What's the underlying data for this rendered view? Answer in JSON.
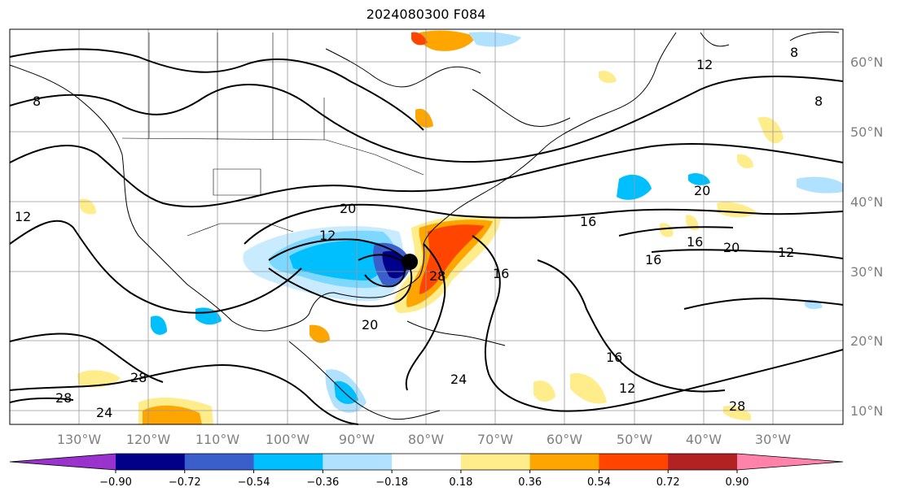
{
  "title": "2024080300 F084",
  "map": {
    "lat_labels": [
      "60°N",
      "50°N",
      "40°N",
      "30°N",
      "20°N",
      "10°N"
    ],
    "lon_labels": [
      "130°W",
      "120°W",
      "110°W",
      "100°W",
      "90°W",
      "80°W",
      "70°W",
      "60°W",
      "50°W",
      "40°W",
      "30°W"
    ],
    "contour_labels": [
      "8",
      "8",
      "8",
      "12",
      "12",
      "12",
      "12",
      "12",
      "16",
      "16",
      "16",
      "16",
      "16",
      "20",
      "20",
      "20",
      "20",
      "24",
      "24",
      "28",
      "28",
      "28",
      "28"
    ]
  },
  "colorbar": {
    "ticks": [
      "−0.90",
      "−0.72",
      "−0.54",
      "−0.36",
      "−0.18",
      "0.18",
      "0.36",
      "0.54",
      "0.72",
      "0.90"
    ],
    "colors": [
      "#9a32cd",
      "#00008b",
      "#3a5fcd",
      "#00bfff",
      "#b0e2ff",
      "#ffffff",
      "#ffec8b",
      "#ffa500",
      "#ff4500",
      "#b22222",
      "#ff82ab"
    ]
  }
}
